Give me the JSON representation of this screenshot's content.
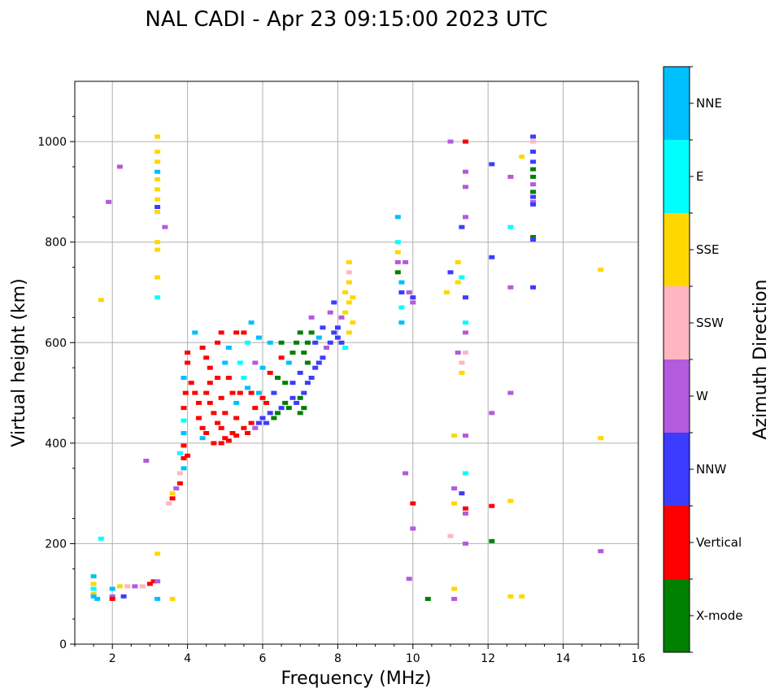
{
  "chart_data": {
    "type": "scatter",
    "title": "NAL CADI - Apr 23 09:15:00 2023 UTC",
    "xlabel": "Frequency (MHz)",
    "ylabel": "Virtual height (km)",
    "xlim": [
      1,
      16
    ],
    "ylim": [
      0,
      1120
    ],
    "xticks": [
      2,
      4,
      6,
      8,
      10,
      12,
      14,
      16
    ],
    "yticks": [
      0,
      200,
      400,
      600,
      800,
      1000
    ],
    "grid": true,
    "colorbar": {
      "label": "Azimuth Direction",
      "position": "right",
      "categories": [
        {
          "name": "X-mode",
          "color": "#008000"
        },
        {
          "name": "Vertical",
          "color": "#ff0000"
        },
        {
          "name": "NNW",
          "color": "#3c3cff"
        },
        {
          "name": "W",
          "color": "#b45adc"
        },
        {
          "name": "SSW",
          "color": "#ffb6c1"
        },
        {
          "name": "SSE",
          "color": "#ffd700"
        },
        {
          "name": "E",
          "color": "#00ffff"
        },
        {
          "name": "NNE",
          "color": "#00bfff"
        }
      ]
    },
    "points": [
      [
        3.2,
        1010,
        "SSE"
      ],
      [
        3.2,
        980,
        "SSE"
      ],
      [
        3.2,
        960,
        "SSE"
      ],
      [
        3.2,
        940,
        "NNE"
      ],
      [
        3.2,
        925,
        "SSE"
      ],
      [
        3.2,
        905,
        "SSE"
      ],
      [
        3.2,
        885,
        "SSE"
      ],
      [
        3.2,
        870,
        "NNW"
      ],
      [
        3.2,
        860,
        "SSE"
      ],
      [
        3.2,
        800,
        "SSE"
      ],
      [
        3.2,
        785,
        "SSE"
      ],
      [
        3.2,
        730,
        "SSE"
      ],
      [
        3.2,
        690,
        "E"
      ],
      [
        2.2,
        950,
        "W"
      ],
      [
        1.9,
        880,
        "W"
      ],
      [
        3.4,
        830,
        "W"
      ],
      [
        1.7,
        685,
        "SSE"
      ],
      [
        3.2,
        180,
        "SSE"
      ],
      [
        1.7,
        210,
        "E"
      ],
      [
        1.5,
        135,
        "NNE"
      ],
      [
        1.5,
        120,
        "SSE"
      ],
      [
        1.5,
        110,
        "E"
      ],
      [
        1.5,
        100,
        "SSE"
      ],
      [
        1.5,
        95,
        "NNE"
      ],
      [
        2.0,
        110,
        "NNE"
      ],
      [
        2.0,
        95,
        "W"
      ],
      [
        2.2,
        115,
        "SSE"
      ],
      [
        2.4,
        115,
        "SSW"
      ],
      [
        2.6,
        115,
        "W"
      ],
      [
        2.8,
        115,
        "SSW"
      ],
      [
        3.0,
        120,
        "Vertical"
      ],
      [
        3.1,
        125,
        "Vertical"
      ],
      [
        3.2,
        125,
        "W"
      ],
      [
        2.0,
        90,
        "Vertical"
      ],
      [
        2.3,
        95,
        "NNW"
      ],
      [
        3.2,
        90,
        "NNE"
      ],
      [
        3.6,
        90,
        "SSE"
      ],
      [
        1.6,
        90,
        "NNE"
      ],
      [
        2.9,
        365,
        "W"
      ],
      [
        3.5,
        280,
        "SSW"
      ],
      [
        3.6,
        290,
        "Vertical"
      ],
      [
        3.6,
        300,
        "SSE"
      ],
      [
        3.7,
        310,
        "W"
      ],
      [
        3.8,
        320,
        "Vertical"
      ],
      [
        3.8,
        340,
        "SSW"
      ],
      [
        3.9,
        350,
        "NNE"
      ],
      [
        3.9,
        370,
        "Vertical"
      ],
      [
        3.8,
        380,
        "E"
      ],
      [
        3.9,
        395,
        "Vertical"
      ],
      [
        4.0,
        375,
        "Vertical"
      ],
      [
        3.9,
        420,
        "NNE"
      ],
      [
        3.9,
        445,
        "E"
      ],
      [
        3.9,
        470,
        "Vertical"
      ],
      [
        3.95,
        500,
        "Vertical"
      ],
      [
        3.9,
        530,
        "NNE"
      ],
      [
        4.0,
        560,
        "Vertical"
      ],
      [
        4.0,
        580,
        "Vertical"
      ],
      [
        4.1,
        520,
        "Vertical"
      ],
      [
        4.2,
        500,
        "Vertical"
      ],
      [
        4.3,
        480,
        "Vertical"
      ],
      [
        4.3,
        450,
        "Vertical"
      ],
      [
        4.4,
        430,
        "Vertical"
      ],
      [
        4.4,
        410,
        "NNE"
      ],
      [
        4.5,
        420,
        "Vertical"
      ],
      [
        4.5,
        500,
        "Vertical"
      ],
      [
        4.6,
        520,
        "Vertical"
      ],
      [
        4.6,
        480,
        "Vertical"
      ],
      [
        4.7,
        460,
        "Vertical"
      ],
      [
        4.8,
        440,
        "Vertical"
      ],
      [
        4.9,
        430,
        "Vertical"
      ],
      [
        4.7,
        400,
        "Vertical"
      ],
      [
        4.9,
        400,
        "Vertical"
      ],
      [
        5.0,
        410,
        "Vertical"
      ],
      [
        5.1,
        405,
        "Vertical"
      ],
      [
        5.2,
        420,
        "Vertical"
      ],
      [
        5.3,
        415,
        "Vertical"
      ],
      [
        5.5,
        430,
        "Vertical"
      ],
      [
        5.6,
        420,
        "Vertical"
      ],
      [
        5.7,
        440,
        "Vertical"
      ],
      [
        5.8,
        430,
        "W"
      ],
      [
        5.9,
        440,
        "NNW"
      ],
      [
        4.2,
        620,
        "NNE"
      ],
      [
        4.4,
        590,
        "Vertical"
      ],
      [
        4.5,
        570,
        "Vertical"
      ],
      [
        4.6,
        550,
        "Vertical"
      ],
      [
        4.8,
        530,
        "Vertical"
      ],
      [
        4.8,
        600,
        "Vertical"
      ],
      [
        4.9,
        620,
        "Vertical"
      ],
      [
        5.0,
        560,
        "NNE"
      ],
      [
        5.1,
        530,
        "Vertical"
      ],
      [
        5.2,
        500,
        "Vertical"
      ],
      [
        5.3,
        480,
        "NNE"
      ],
      [
        5.4,
        560,
        "E"
      ],
      [
        5.5,
        530,
        "E"
      ],
      [
        5.6,
        510,
        "NNE"
      ],
      [
        5.6,
        600,
        "E"
      ],
      [
        5.7,
        640,
        "NNE"
      ],
      [
        5.8,
        560,
        "W"
      ],
      [
        5.9,
        610,
        "NNE"
      ],
      [
        5.8,
        470,
        "Vertical"
      ],
      [
        5.1,
        590,
        "NNE"
      ],
      [
        5.3,
        620,
        "Vertical"
      ],
      [
        5.5,
        620,
        "Vertical"
      ],
      [
        5.0,
        460,
        "Vertical"
      ],
      [
        4.9,
        490,
        "Vertical"
      ],
      [
        5.3,
        450,
        "Vertical"
      ],
      [
        5.4,
        500,
        "Vertical"
      ],
      [
        5.7,
        500,
        "Vertical"
      ],
      [
        5.9,
        500,
        "NNE"
      ],
      [
        6.0,
        450,
        "NNW"
      ],
      [
        6.1,
        440,
        "NNW"
      ],
      [
        6.2,
        460,
        "NNW"
      ],
      [
        6.3,
        450,
        "X-mode"
      ],
      [
        6.4,
        460,
        "X-mode"
      ],
      [
        6.5,
        470,
        "NNW"
      ],
      [
        6.6,
        480,
        "X-mode"
      ],
      [
        6.7,
        470,
        "X-mode"
      ],
      [
        6.8,
        490,
        "NNW"
      ],
      [
        6.9,
        480,
        "NNW"
      ],
      [
        7.0,
        490,
        "X-mode"
      ],
      [
        7.1,
        500,
        "NNW"
      ],
      [
        7.2,
        520,
        "NNW"
      ],
      [
        7.3,
        530,
        "NNW"
      ],
      [
        7.4,
        550,
        "NNW"
      ],
      [
        7.5,
        560,
        "NNW"
      ],
      [
        7.6,
        570,
        "NNW"
      ],
      [
        7.7,
        590,
        "W"
      ],
      [
        7.8,
        600,
        "NNW"
      ],
      [
        7.9,
        620,
        "NNW"
      ],
      [
        8.0,
        630,
        "NNW"
      ],
      [
        8.1,
        650,
        "W"
      ],
      [
        8.2,
        660,
        "SSE"
      ],
      [
        8.3,
        680,
        "SSE"
      ],
      [
        8.4,
        690,
        "SSE"
      ],
      [
        8.3,
        620,
        "SSE"
      ],
      [
        8.4,
        640,
        "SSE"
      ],
      [
        8.2,
        700,
        "SSE"
      ],
      [
        8.3,
        720,
        "SSE"
      ],
      [
        8.3,
        740,
        "SSW"
      ],
      [
        8.3,
        760,
        "SSE"
      ],
      [
        8.2,
        590,
        "E"
      ],
      [
        8.1,
        600,
        "NNW"
      ],
      [
        6.0,
        490,
        "Vertical"
      ],
      [
        6.1,
        480,
        "Vertical"
      ],
      [
        6.2,
        540,
        "Vertical"
      ],
      [
        6.3,
        500,
        "NNW"
      ],
      [
        6.4,
        530,
        "X-mode"
      ],
      [
        6.5,
        570,
        "Vertical"
      ],
      [
        6.5,
        600,
        "X-mode"
      ],
      [
        6.6,
        520,
        "X-mode"
      ],
      [
        6.7,
        560,
        "NNE"
      ],
      [
        6.8,
        580,
        "X-mode"
      ],
      [
        6.9,
        600,
        "X-mode"
      ],
      [
        7.0,
        620,
        "X-mode"
      ],
      [
        7.0,
        540,
        "NNW"
      ],
      [
        7.1,
        580,
        "X-mode"
      ],
      [
        7.2,
        600,
        "X-mode"
      ],
      [
        7.3,
        620,
        "X-mode"
      ],
      [
        7.3,
        650,
        "W"
      ],
      [
        7.0,
        460,
        "X-mode"
      ],
      [
        7.1,
        470,
        "X-mode"
      ],
      [
        6.8,
        520,
        "NNW"
      ],
      [
        7.2,
        560,
        "X-mode"
      ],
      [
        7.4,
        600,
        "NNW"
      ],
      [
        7.6,
        630,
        "NNW"
      ],
      [
        7.8,
        660,
        "W"
      ],
      [
        7.9,
        680,
        "NNW"
      ],
      [
        8.0,
        610,
        "NNW"
      ],
      [
        7.5,
        610,
        "NNE"
      ],
      [
        6.2,
        600,
        "NNE"
      ],
      [
        6.0,
        550,
        "NNE"
      ],
      [
        9.6,
        850,
        "NNE"
      ],
      [
        9.6,
        800,
        "E"
      ],
      [
        9.6,
        780,
        "SSE"
      ],
      [
        9.6,
        760,
        "W"
      ],
      [
        9.6,
        740,
        "X-mode"
      ],
      [
        9.7,
        720,
        "NNE"
      ],
      [
        9.7,
        700,
        "NNW"
      ],
      [
        9.8,
        760,
        "W"
      ],
      [
        9.9,
        700,
        "W"
      ],
      [
        10.0,
        680,
        "W"
      ],
      [
        9.7,
        670,
        "E"
      ],
      [
        9.7,
        640,
        "NNE"
      ],
      [
        10.0,
        690,
        "NNW"
      ],
      [
        9.8,
        340,
        "W"
      ],
      [
        10.0,
        280,
        "Vertical"
      ],
      [
        10.0,
        230,
        "W"
      ],
      [
        9.9,
        130,
        "W"
      ],
      [
        10.4,
        90,
        "X-mode"
      ],
      [
        11.0,
        1000,
        "W"
      ],
      [
        11.4,
        1000,
        "Vertical"
      ],
      [
        11.4,
        940,
        "W"
      ],
      [
        11.4,
        910,
        "W"
      ],
      [
        11.3,
        830,
        "NNW"
      ],
      [
        11.4,
        850,
        "W"
      ],
      [
        11.2,
        760,
        "SSE"
      ],
      [
        11.0,
        740,
        "NNW"
      ],
      [
        11.3,
        730,
        "E"
      ],
      [
        11.2,
        720,
        "SSE"
      ],
      [
        10.9,
        700,
        "SSE"
      ],
      [
        11.4,
        690,
        "NNW"
      ],
      [
        11.4,
        640,
        "E"
      ],
      [
        11.4,
        620,
        "W"
      ],
      [
        11.4,
        580,
        "SSW"
      ],
      [
        11.2,
        580,
        "W"
      ],
      [
        11.3,
        560,
        "SSW"
      ],
      [
        11.3,
        540,
        "SSE"
      ],
      [
        11.1,
        415,
        "SSE"
      ],
      [
        11.4,
        415,
        "W"
      ],
      [
        11.4,
        340,
        "E"
      ],
      [
        11.1,
        310,
        "W"
      ],
      [
        11.3,
        300,
        "NNW"
      ],
      [
        11.1,
        280,
        "SSE"
      ],
      [
        11.4,
        270,
        "Vertical"
      ],
      [
        11.4,
        260,
        "W"
      ],
      [
        11.0,
        215,
        "SSW"
      ],
      [
        11.4,
        200,
        "W"
      ],
      [
        11.1,
        110,
        "SSE"
      ],
      [
        11.1,
        90,
        "W"
      ],
      [
        12.1,
        955,
        "NNW"
      ],
      [
        12.6,
        930,
        "W"
      ],
      [
        12.1,
        770,
        "NNW"
      ],
      [
        12.6,
        830,
        "E"
      ],
      [
        12.6,
        710,
        "W"
      ],
      [
        12.6,
        500,
        "W"
      ],
      [
        12.1,
        460,
        "W"
      ],
      [
        12.1,
        275,
        "Vertical"
      ],
      [
        12.6,
        285,
        "SSE"
      ],
      [
        12.1,
        205,
        "X-mode"
      ],
      [
        12.6,
        95,
        "SSE"
      ],
      [
        12.9,
        95,
        "SSE"
      ],
      [
        12.9,
        970,
        "SSE"
      ],
      [
        13.2,
        1010,
        "NNW"
      ],
      [
        13.2,
        1000,
        "SSW"
      ],
      [
        13.2,
        980,
        "NNW"
      ],
      [
        13.2,
        960,
        "NNW"
      ],
      [
        13.2,
        945,
        "X-mode"
      ],
      [
        13.2,
        930,
        "X-mode"
      ],
      [
        13.2,
        915,
        "W"
      ],
      [
        13.2,
        900,
        "X-mode"
      ],
      [
        13.2,
        890,
        "NNW"
      ],
      [
        13.2,
        880,
        "W"
      ],
      [
        13.2,
        875,
        "NNW"
      ],
      [
        13.2,
        810,
        "X-mode"
      ],
      [
        13.2,
        805,
        "NNW"
      ],
      [
        13.2,
        710,
        "NNW"
      ],
      [
        15.0,
        745,
        "SSE"
      ],
      [
        15.0,
        410,
        "SSE"
      ],
      [
        15.0,
        185,
        "W"
      ]
    ]
  }
}
